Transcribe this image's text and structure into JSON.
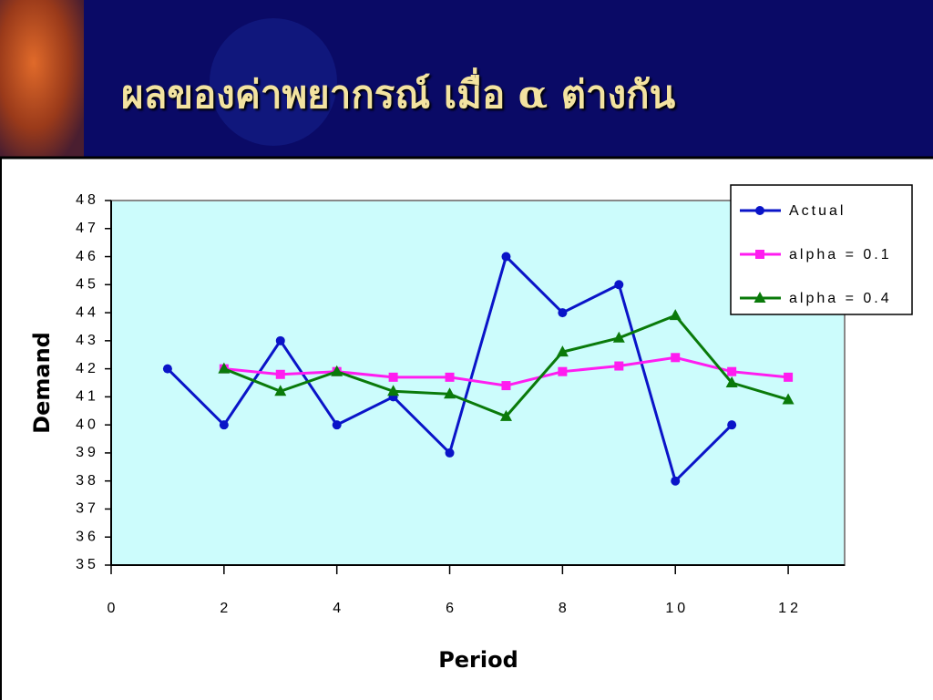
{
  "chart_data": {
    "type": "line",
    "title": "ผลของค่าพยากรณ์ เมื่อ α ต่างกัน",
    "x_label": "Period",
    "y_label": "Demand",
    "xlim": [
      0,
      13
    ],
    "xticks": [
      0,
      2,
      4,
      6,
      8,
      10,
      12
    ],
    "ylim": [
      35,
      48
    ],
    "yticks": [
      35,
      36,
      37,
      38,
      39,
      40,
      41,
      42,
      43,
      44,
      45,
      46,
      47,
      48
    ],
    "legend": "upper right",
    "series": [
      {
        "name": "Actual",
        "color": "#0a14c8",
        "marker": "circle",
        "x": [
          1,
          2,
          3,
          4,
          5,
          6,
          7,
          8,
          9,
          10,
          11
        ],
        "values": [
          42,
          40,
          43,
          40,
          41,
          39,
          46,
          44,
          45,
          38,
          40
        ]
      },
      {
        "name": "alpha = 0.1",
        "color": "#ff1cf0",
        "marker": "square",
        "x": [
          2,
          3,
          4,
          5,
          6,
          7,
          8,
          9,
          10,
          11,
          12
        ],
        "values": [
          42,
          41.8,
          41.9,
          41.7,
          41.7,
          41.4,
          41.9,
          42.1,
          42.4,
          41.9,
          41.7
        ]
      },
      {
        "name": "alpha = 0.4",
        "color": "#0a7a0a",
        "marker": "triangle",
        "x": [
          2,
          3,
          4,
          5,
          6,
          7,
          8,
          9,
          10,
          11,
          12
        ],
        "values": [
          42,
          41.2,
          41.9,
          41.2,
          41.1,
          40.3,
          42.6,
          43.1,
          43.9,
          41.5,
          40.9
        ]
      }
    ]
  }
}
